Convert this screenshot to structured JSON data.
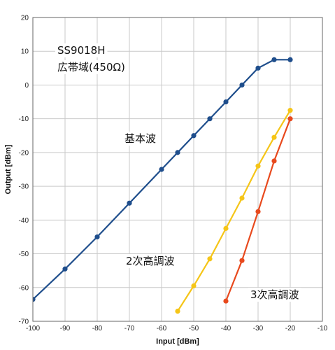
{
  "chart_data": {
    "type": "line",
    "title": "",
    "xlabel": "Input [dBm]",
    "ylabel": "Output [dBm]",
    "xlim": [
      -100,
      -10
    ],
    "ylim": [
      -70,
      20
    ],
    "xticks": [
      "-100",
      "-90",
      "-80",
      "-70",
      "-60",
      "-50",
      "-40",
      "-30",
      "-20",
      "-10"
    ],
    "yticks": [
      "20",
      "10",
      "0",
      "-10",
      "-20",
      "-30",
      "-40",
      "-50",
      "-60",
      "-70"
    ],
    "grid": true,
    "annotations": [
      {
        "text": "SS9018H"
      },
      {
        "text": "広帯域(450Ω)"
      },
      {
        "text": "基本波"
      },
      {
        "text": "2次高調波"
      },
      {
        "text": "3次高調波"
      }
    ],
    "series": [
      {
        "color": "#1f4e8c",
        "points": [
          [
            -100,
            -63.5
          ],
          [
            -90,
            -54.5
          ],
          [
            -80,
            -45
          ],
          [
            -70,
            -35
          ],
          [
            -60,
            -25
          ],
          [
            -55,
            -20
          ],
          [
            -50,
            -15
          ],
          [
            -45,
            -10
          ],
          [
            -40,
            -5
          ],
          [
            -35,
            0
          ],
          [
            -30,
            5
          ],
          [
            -25,
            7.5
          ],
          [
            -20,
            7.5
          ]
        ]
      },
      {
        "color": "#f5c518",
        "points": [
          [
            -55,
            -67
          ],
          [
            -50,
            -59.5
          ],
          [
            -45,
            -51.5
          ],
          [
            -40,
            -42.5
          ],
          [
            -35,
            -33.5
          ],
          [
            -30,
            -24
          ],
          [
            -25,
            -15.5
          ],
          [
            -20,
            -7.5
          ]
        ]
      },
      {
        "color": "#e8491d",
        "points": [
          [
            -40,
            -64
          ],
          [
            -35,
            -52
          ],
          [
            -30,
            -37.5
          ],
          [
            -25,
            -22.5
          ],
          [
            -20,
            -10
          ]
        ]
      }
    ]
  }
}
